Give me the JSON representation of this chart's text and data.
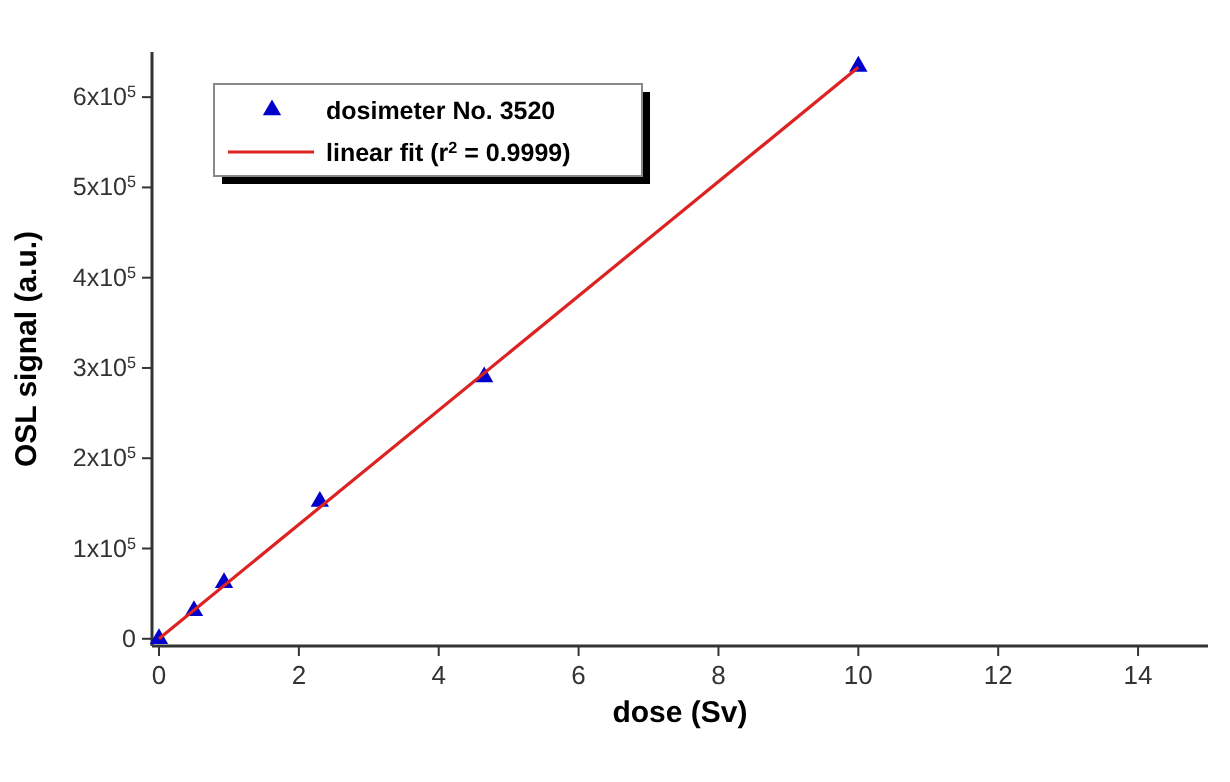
{
  "chart_data": {
    "type": "scatter",
    "xlabel": "dose (Sv)",
    "ylabel": "OSL signal (a.u.)",
    "xlim": [
      -0.1,
      15
    ],
    "ylim": [
      -8000,
      650000
    ],
    "xticks": [
      0,
      2,
      4,
      6,
      8,
      10,
      12,
      14
    ],
    "yticks": [
      0,
      {
        "value": 100000,
        "label": "1x10$^{5}$"
      },
      {
        "value": 200000,
        "label": "2x10$^{5}$"
      },
      {
        "value": 300000,
        "label": "3x10$^{5}$"
      },
      {
        "value": 400000,
        "label": "4x10$^{5}$"
      },
      {
        "value": 500000,
        "label": "5x10$^{5}$"
      },
      {
        "value": 600000,
        "label": "6x10$^{5}$"
      }
    ],
    "grid": false,
    "legend": "top left",
    "series": [
      {
        "name": "dosimeter No. 3520",
        "marker": "triangle",
        "color": "#0000cc",
        "x": [
          0,
          0.5,
          0.93,
          2.3,
          4.65,
          10
        ],
        "values": [
          0,
          31000,
          62000,
          152000,
          290000,
          634000
        ]
      },
      {
        "name": "linear fit (r$^{2}$ = 0.9999)",
        "type": "line",
        "color": "#dd2222",
        "line_style": "solid",
        "marker": "none",
        "x": [
          0,
          10
        ],
        "values": [
          0,
          633000
        ]
      }
    ]
  }
}
